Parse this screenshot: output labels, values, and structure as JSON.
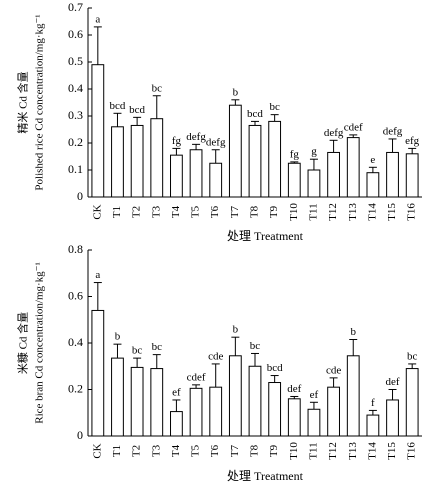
{
  "chart_data": [
    {
      "type": "bar",
      "ylabel": [
        "精米 Cd 含量",
        "Polished rice Cd concentration/mg·kg⁻¹"
      ],
      "xlabel": "处理 Treatment",
      "categories": [
        "CK",
        "T1",
        "T2",
        "T3",
        "T4",
        "T5",
        "T6",
        "T7",
        "T8",
        "T9",
        "T10",
        "T11",
        "T12",
        "T13",
        "T14",
        "T15",
        "T16"
      ],
      "values": [
        0.49,
        0.26,
        0.265,
        0.29,
        0.155,
        0.175,
        0.125,
        0.34,
        0.265,
        0.28,
        0.125,
        0.1,
        0.165,
        0.22,
        0.09,
        0.165,
        0.16
      ],
      "errors": [
        0.14,
        0.05,
        0.03,
        0.085,
        0.025,
        0.02,
        0.05,
        0.02,
        0.015,
        0.025,
        0.005,
        0.04,
        0.045,
        0.01,
        0.02,
        0.05,
        0.02
      ],
      "letters": [
        "a",
        "bcd",
        "bcd",
        "bc",
        "fg",
        "defg",
        "defg",
        "b",
        "bcd",
        "bc",
        "fg",
        "g",
        "defg",
        "cdef",
        "e",
        "defg",
        "efg"
      ],
      "color": "#ffffff",
      "ylim": [
        0,
        0.7
      ],
      "yticks": [
        0,
        0.1,
        0.2,
        0.3,
        0.4,
        0.5,
        0.6,
        0.7
      ]
    },
    {
      "type": "bar",
      "ylabel": [
        "米糠 Cd 含量",
        "Rice bran Cd concentration/mg·kg⁻¹"
      ],
      "xlabel": "处理 Treatment",
      "categories": [
        "CK",
        "T1",
        "T2",
        "T3",
        "T4",
        "T5",
        "T6",
        "T7",
        "T8",
        "T9",
        "T10",
        "T11",
        "T12",
        "T13",
        "T14",
        "T15",
        "T16"
      ],
      "values": [
        0.54,
        0.335,
        0.295,
        0.29,
        0.105,
        0.205,
        0.21,
        0.345,
        0.3,
        0.23,
        0.16,
        0.115,
        0.21,
        0.345,
        0.09,
        0.155,
        0.29
      ],
      "errors": [
        0.12,
        0.06,
        0.04,
        0.06,
        0.05,
        0.015,
        0.1,
        0.08,
        0.055,
        0.03,
        0.01,
        0.03,
        0.04,
        0.07,
        0.02,
        0.045,
        0.02
      ],
      "letters": [
        "a",
        "b",
        "bc",
        "bc",
        "ef",
        "cdef",
        "cde",
        "b",
        "bc",
        "bcd",
        "def",
        "ef",
        "cde",
        "b",
        "f",
        "def",
        "bc"
      ],
      "color": "#ffffff",
      "ylim": [
        0,
        0.8
      ],
      "yticks": [
        0,
        0.2,
        0.4,
        0.6,
        0.8
      ]
    }
  ]
}
